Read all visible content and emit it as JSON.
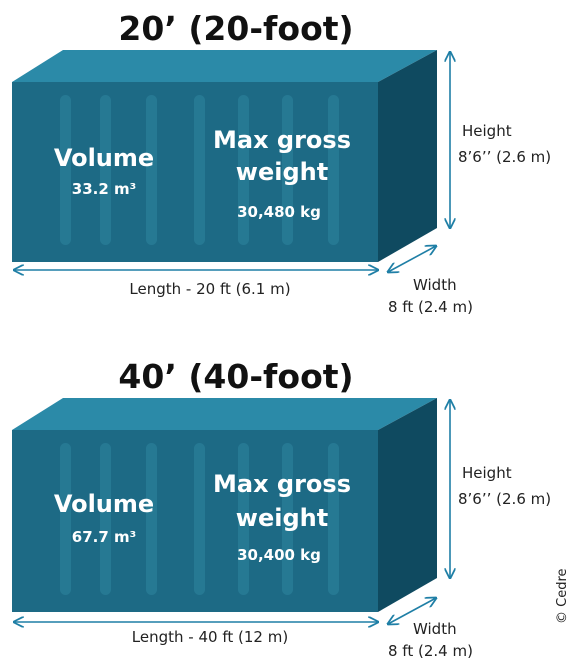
{
  "colors": {
    "container_front": "#1d6a85",
    "container_top": "#2b8aa8",
    "container_side": "#0f4a60",
    "rib": "#2f86a0",
    "arrow": "#1f7fa6"
  },
  "containers": [
    {
      "title": "20’ (20-foot)",
      "volume_label": "Volume",
      "volume_value": "33.2 m³",
      "weight_label_line1": "Max gross",
      "weight_label_line2": "weight",
      "weight_value": "30,480 kg",
      "height_label": "Height",
      "height_value": "8’6’’ (2.6 m)",
      "length_label": "Length - 20 ft (6.1 m)",
      "width_label": "Width",
      "width_value": "8 ft (2.4 m)"
    },
    {
      "title": "40’ (40-foot)",
      "volume_label": "Volume",
      "volume_value": "67.7 m³",
      "weight_label_line1": "Max gross",
      "weight_label_line2": "weight",
      "weight_value": "30,400 kg",
      "height_label": "Height",
      "height_value": "8’6’’ (2.6 m)",
      "length_label": "Length - 40 ft (12 m)",
      "width_label": "Width",
      "width_value": "8 ft (2.4 m)"
    }
  ],
  "credit": "© Cedre"
}
